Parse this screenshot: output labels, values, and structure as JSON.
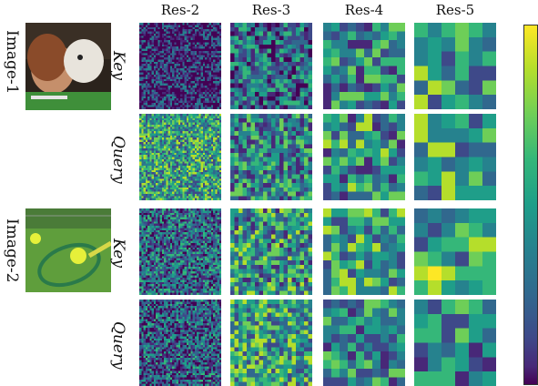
{
  "columns": [
    "Res-2",
    "Res-3",
    "Res-4",
    "Res-5"
  ],
  "images": [
    {
      "label": "Image-1",
      "rows": [
        {
          "label": "Key"
        },
        {
          "label": "Query"
        }
      ]
    },
    {
      "label": "Image-2",
      "rows": [
        {
          "label": "Key"
        },
        {
          "label": "Query"
        }
      ]
    }
  ],
  "colormap": "viridis",
  "colors": {
    "viridis_low": "#440154",
    "viridis_mid": "#21918c",
    "viridis_high": "#fde725"
  },
  "grid_resolutions": [
    40,
    20,
    10,
    6
  ]
}
